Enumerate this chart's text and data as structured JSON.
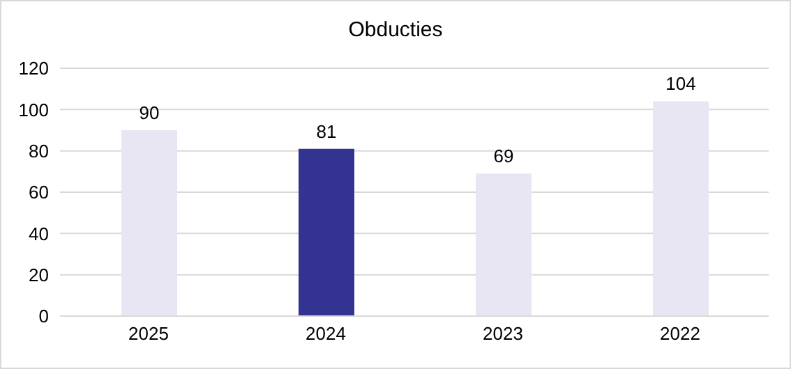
{
  "chart_data": {
    "type": "bar",
    "title": "Obducties",
    "categories": [
      "2025",
      "2024",
      "2023",
      "2022"
    ],
    "values": [
      90,
      81,
      69,
      104
    ],
    "colors": [
      "#e8e6f3",
      "#333391",
      "#e8e6f3",
      "#e8e6f3"
    ],
    "ylim": [
      0,
      120
    ],
    "yticks": [
      0,
      20,
      40,
      60,
      80,
      100,
      120
    ],
    "grid": "y",
    "data_labels": true
  }
}
